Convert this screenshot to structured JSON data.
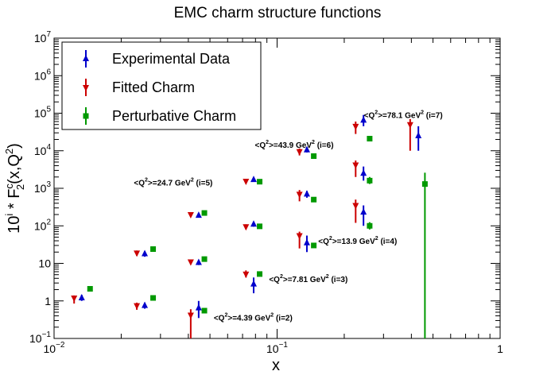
{
  "chart_data": {
    "type": "scatter",
    "title": "EMC charm structure functions",
    "xlabel": "x",
    "ylabel_prefix": "10",
    "ylabel_exp": "i",
    "ylabel_mid": " * F",
    "ylabel_sub": "2",
    "ylabel_sup": "c",
    "ylabel_tail": "(x,Q",
    "ylabel_q_sup": "2",
    "ylabel_end": ")",
    "xscale": "log",
    "yscale": "log",
    "xlim": [
      0.01,
      1
    ],
    "ylim": [
      0.1,
      10000000
    ],
    "x_ticks": [
      {
        "value": 0.01,
        "base": "10",
        "exp": "−2"
      },
      {
        "value": 0.1,
        "base": "10",
        "exp": "−1"
      },
      {
        "value": 1,
        "base": "1",
        "exp": ""
      }
    ],
    "y_ticks": [
      {
        "value": 0.1,
        "base": "10",
        "exp": "−1"
      },
      {
        "value": 1,
        "base": "1",
        "exp": ""
      },
      {
        "value": 10,
        "base": "10",
        "exp": ""
      },
      {
        "value": 100,
        "base": "10",
        "exp": "2"
      },
      {
        "value": 1000,
        "base": "10",
        "exp": "3"
      },
      {
        "value": 10000,
        "base": "10",
        "exp": "4"
      },
      {
        "value": 100000,
        "base": "10",
        "exp": "5"
      },
      {
        "value": 1000000,
        "base": "10",
        "exp": "6"
      },
      {
        "value": 10000000,
        "base": "10",
        "exp": "7"
      }
    ],
    "legend": {
      "position": "top-left",
      "entries": [
        {
          "name": "Experimental Data",
          "color": "#0000cc",
          "marker": "triangle-up"
        },
        {
          "name": "Fitted Charm",
          "color": "#cc0000",
          "marker": "triangle-down"
        },
        {
          "name": "Perturbative Charm",
          "color": "#009900",
          "marker": "square"
        }
      ]
    },
    "series": [
      {
        "name": "Experimental Data",
        "color": "#0000cc",
        "marker": "triangle-up",
        "points": [
          {
            "x": 0.0133,
            "y": 1.2,
            "lo": 1.0,
            "hi": 1.45
          },
          {
            "x": 0.0255,
            "y": 0.75,
            "lo": 0.62,
            "hi": 0.9
          },
          {
            "x": 0.0445,
            "y": 0.65,
            "lo": 0.35,
            "hi": 1.0
          },
          {
            "x": 0.0785,
            "y": 2.8,
            "lo": 1.6,
            "hi": 4.2
          },
          {
            "x": 0.136,
            "y": 35,
            "lo": 20,
            "hi": 55
          },
          {
            "x": 0.244,
            "y": 230,
            "lo": 100,
            "hi": 350
          },
          {
            "x": 0.0255,
            "y": 18,
            "lo": 15,
            "hi": 21
          },
          {
            "x": 0.0445,
            "y": 10.5,
            "lo": 9,
            "hi": 12
          },
          {
            "x": 0.0785,
            "y": 110,
            "lo": 95,
            "hi": 125
          },
          {
            "x": 0.136,
            "y": 700,
            "lo": 560,
            "hi": 850
          },
          {
            "x": 0.244,
            "y": 2500,
            "lo": 1600,
            "hi": 3800
          },
          {
            "x": 0.43,
            "y": 25000,
            "lo": 10000,
            "hi": 45000
          },
          {
            "x": 0.0445,
            "y": 190,
            "lo": 170,
            "hi": 215
          },
          {
            "x": 0.0785,
            "y": 1700,
            "lo": 1500,
            "hi": 1950
          },
          {
            "x": 0.136,
            "y": 10500,
            "lo": 9000,
            "hi": 12500
          },
          {
            "x": 0.244,
            "y": 65000,
            "lo": 45000,
            "hi": 90000
          }
        ]
      },
      {
        "name": "Fitted Charm",
        "color": "#cc0000",
        "marker": "triangle-down",
        "points": [
          {
            "x": 0.0123,
            "y": 1.2,
            "lo": 0.85,
            "hi": 1.4
          },
          {
            "x": 0.0235,
            "y": 0.75,
            "lo": 0.58,
            "hi": 0.9
          },
          {
            "x": 0.041,
            "y": 0.42,
            "lo": 0.1,
            "hi": 0.6
          },
          {
            "x": 0.0725,
            "y": 5.2,
            "lo": 4.2,
            "hi": 6.5
          },
          {
            "x": 0.126,
            "y": 55,
            "lo": 25,
            "hi": 70
          },
          {
            "x": 0.225,
            "y": 350,
            "lo": 120,
            "hi": 500
          },
          {
            "x": 0.0235,
            "y": 19,
            "lo": 16,
            "hi": 22
          },
          {
            "x": 0.041,
            "y": 11,
            "lo": 9.5,
            "hi": 12.5
          },
          {
            "x": 0.0725,
            "y": 95,
            "lo": 82,
            "hi": 110
          },
          {
            "x": 0.126,
            "y": 700,
            "lo": 450,
            "hi": 900
          },
          {
            "x": 0.225,
            "y": 4200,
            "lo": 2000,
            "hi": 5500
          },
          {
            "x": 0.395,
            "y": 50000,
            "lo": 10000,
            "hi": 70000
          },
          {
            "x": 0.041,
            "y": 200,
            "lo": 180,
            "hi": 220
          },
          {
            "x": 0.0725,
            "y": 1550,
            "lo": 1350,
            "hi": 1750
          },
          {
            "x": 0.126,
            "y": 9500,
            "lo": 7500,
            "hi": 11500
          },
          {
            "x": 0.225,
            "y": 45000,
            "lo": 28000,
            "hi": 60000
          }
        ]
      },
      {
        "name": "Perturbative Charm",
        "color": "#009900",
        "marker": "square",
        "points": [
          {
            "x": 0.0145,
            "y": 2.1,
            "lo": 2.1,
            "hi": 2.1
          },
          {
            "x": 0.0278,
            "y": 1.2,
            "lo": 1.2,
            "hi": 1.2
          },
          {
            "x": 0.0472,
            "y": 0.55,
            "lo": 0.55,
            "hi": 0.55
          },
          {
            "x": 0.0835,
            "y": 5.2,
            "lo": 5.2,
            "hi": 5.2
          },
          {
            "x": 0.146,
            "y": 30,
            "lo": 30,
            "hi": 30
          },
          {
            "x": 0.26,
            "y": 100,
            "lo": 80,
            "hi": 125
          },
          {
            "x": 0.0278,
            "y": 24,
            "lo": 24,
            "hi": 24
          },
          {
            "x": 0.0472,
            "y": 13,
            "lo": 13,
            "hi": 13
          },
          {
            "x": 0.0835,
            "y": 97,
            "lo": 97,
            "hi": 97
          },
          {
            "x": 0.146,
            "y": 500,
            "lo": 500,
            "hi": 500
          },
          {
            "x": 0.26,
            "y": 1600,
            "lo": 1300,
            "hi": 2000
          },
          {
            "x": 0.46,
            "y": 1300,
            "lo": 0.1,
            "hi": 2600
          },
          {
            "x": 0.0472,
            "y": 220,
            "lo": 220,
            "hi": 220
          },
          {
            "x": 0.0835,
            "y": 1500,
            "lo": 1500,
            "hi": 1500
          },
          {
            "x": 0.146,
            "y": 7200,
            "lo": 7200,
            "hi": 7200
          },
          {
            "x": 0.26,
            "y": 21000,
            "lo": 18000,
            "hi": 24000
          }
        ]
      }
    ],
    "annotations": [
      {
        "q": "4.39",
        "i": "2",
        "x": 0.052,
        "y": 0.3
      },
      {
        "q": "7.81",
        "i": "3",
        "x": 0.092,
        "y": 3.2
      },
      {
        "q": "13.9",
        "i": "4",
        "x": 0.153,
        "y": 33
      },
      {
        "q": "24.7",
        "i": "5",
        "x": 0.0228,
        "y": 1200
      },
      {
        "q": "43.9",
        "i": "6",
        "x": 0.0795,
        "y": 12000
      },
      {
        "q": "78.1",
        "i": "7",
        "x": 0.245,
        "y": 75000
      }
    ]
  }
}
